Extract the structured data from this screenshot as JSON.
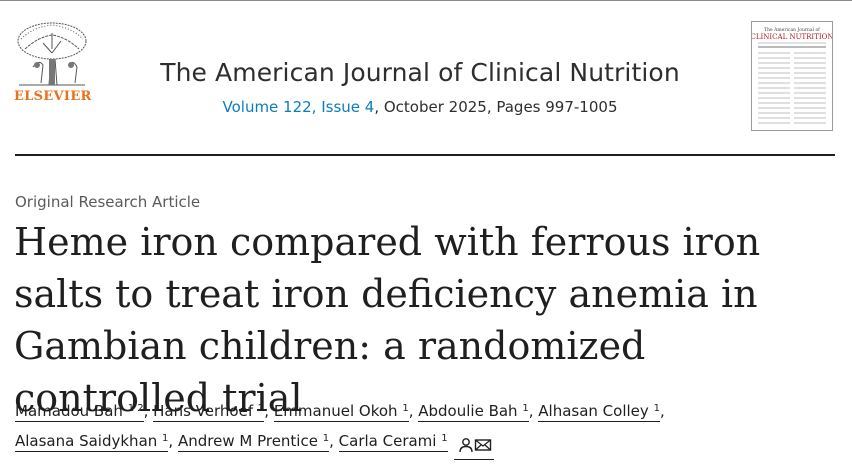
{
  "publisher": {
    "wordmark": "ELSEVIER"
  },
  "journal": {
    "title": "The American Journal of Clinical Nutrition",
    "issue_link": "Volume 122, Issue 4",
    "issue_rest": ", October 2025, Pages 997-1005"
  },
  "cover": {
    "header_small": "The American Journal of",
    "header_big": "CLINICAL NUTRITION"
  },
  "article": {
    "type": "Original Research Article",
    "title": "Heme iron compared with ferrous iron salts to treat iron deficiency anemia in Gambian children: a randomized controlled trial"
  },
  "authors": [
    {
      "name": "Mamadou Bah",
      "sup": "1 2"
    },
    {
      "name": "Hans Verhoef",
      "sup": "2"
    },
    {
      "name": "Emmanuel Okoh",
      "sup": "1"
    },
    {
      "name": "Abdoulie Bah",
      "sup": "1"
    },
    {
      "name": "Alhasan Colley",
      "sup": "1"
    },
    {
      "name": "Alasana Saidykhan",
      "sup": "1"
    },
    {
      "name": "Andrew M Prentice",
      "sup": "1"
    },
    {
      "name": "Carla Cerami",
      "sup": "1"
    }
  ],
  "colors": {
    "elsevier_orange": "#e9711c",
    "link_blue": "#0c7dbb",
    "text": "#1f1f1f"
  },
  "icons": [
    "person-icon",
    "envelope-icon"
  ]
}
